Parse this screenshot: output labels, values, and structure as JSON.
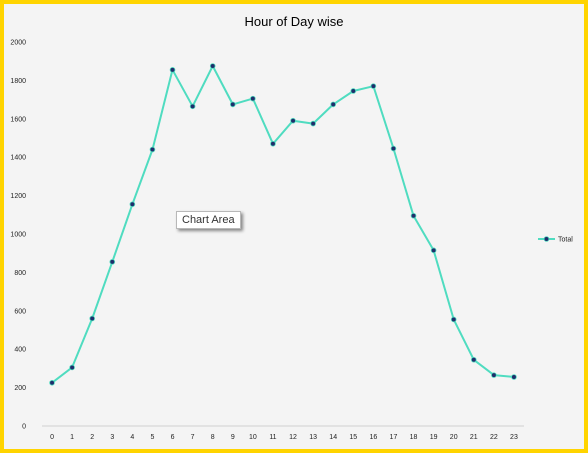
{
  "chart_data": {
    "type": "line",
    "title": "Hour of Day wise",
    "xlabel": "",
    "ylabel": "",
    "categories": [
      "0",
      "1",
      "2",
      "3",
      "4",
      "5",
      "6",
      "7",
      "8",
      "9",
      "10",
      "11",
      "12",
      "13",
      "14",
      "15",
      "16",
      "17",
      "18",
      "19",
      "20",
      "21",
      "22",
      "23"
    ],
    "series": [
      {
        "name": "Total",
        "values": [
          225,
          305,
          560,
          855,
          1155,
          1440,
          1855,
          1665,
          1875,
          1675,
          1705,
          1470,
          1590,
          1575,
          1675,
          1745,
          1770,
          1445,
          1095,
          915,
          555,
          345,
          265,
          255
        ]
      }
    ],
    "ylim": [
      0,
      2000
    ],
    "yticks": [
      0,
      200,
      400,
      600,
      800,
      1000,
      1200,
      1400,
      1600,
      1800,
      2000
    ],
    "grid": false,
    "legend_position": "right",
    "colors": {
      "line": "#4FDCC0",
      "marker": "#1F2D6B",
      "background": "#F4F4F4",
      "frame": "#FFD400"
    }
  },
  "tooltip_text": "Chart Area"
}
